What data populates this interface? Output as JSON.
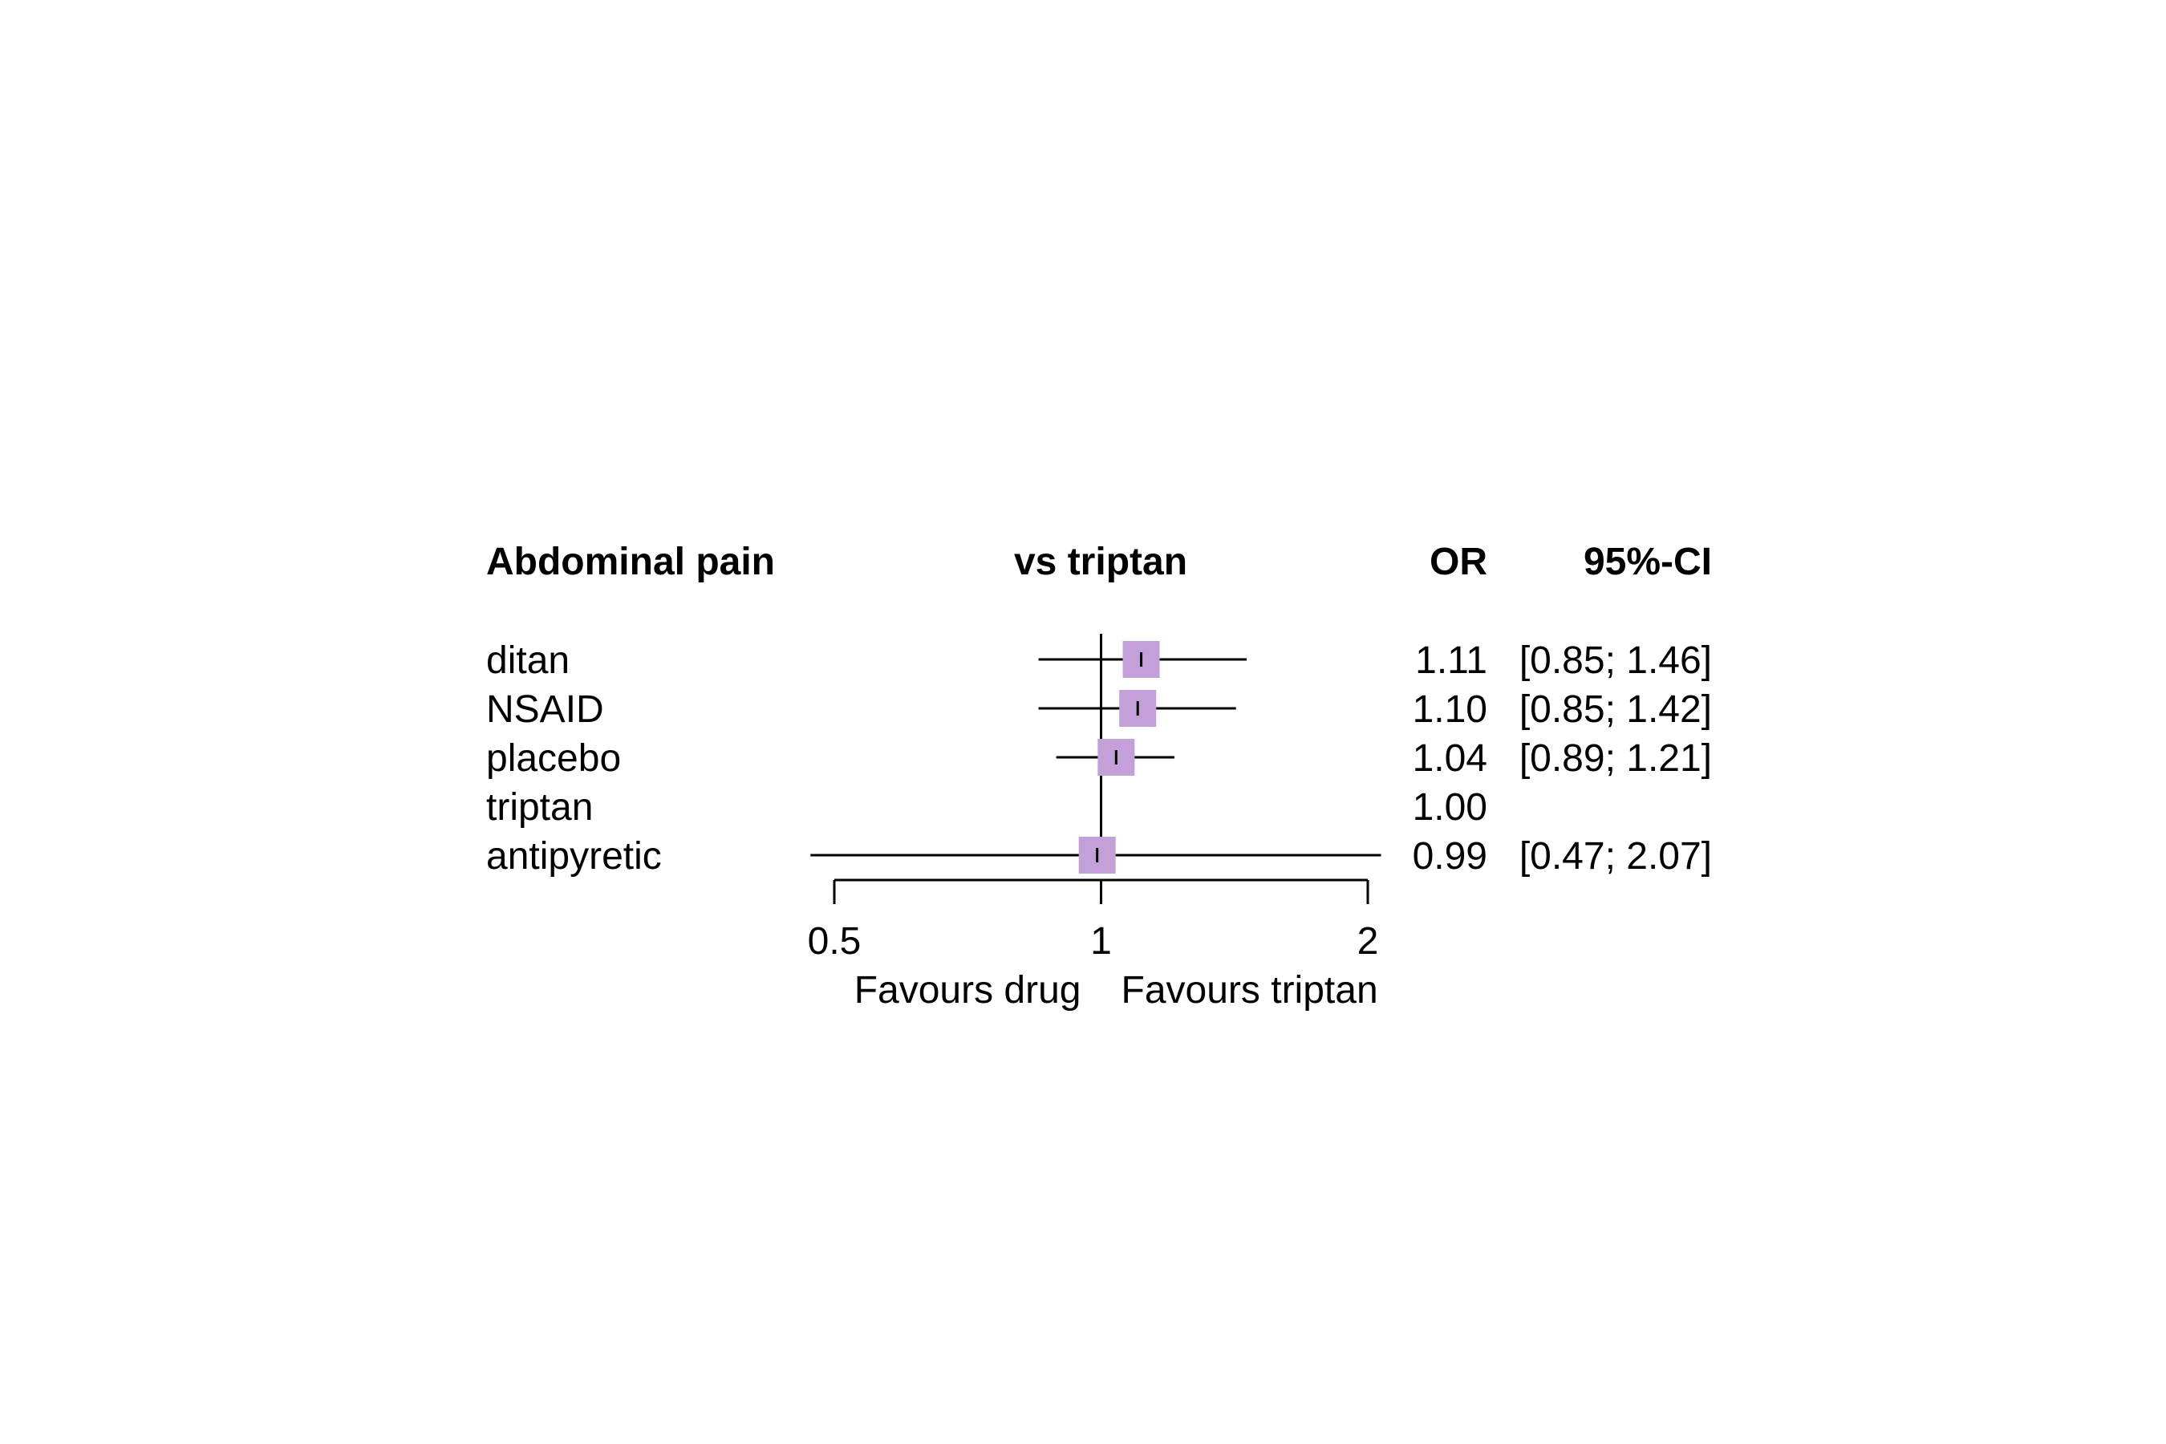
{
  "chart_data": {
    "type": "forest",
    "headers": {
      "outcome": "Abdominal pain",
      "comparison": "vs triptan",
      "estimate": "OR",
      "ci": "95%-CI"
    },
    "scale": "log",
    "xlim": [
      0.5,
      2
    ],
    "reference_value": 1,
    "ticks": [
      {
        "value": 0.5,
        "label": "0.5"
      },
      {
        "value": 1,
        "label": "1"
      },
      {
        "value": 2,
        "label": "2"
      }
    ],
    "favours_left": "Favours drug",
    "favours_right": "Favours triptan",
    "marker_color": "#c3a1d8",
    "rows": [
      {
        "label": "ditan",
        "or": 1.11,
        "lower": 0.85,
        "upper": 1.46,
        "or_text": "1.11",
        "ci_text": "[0.85; 1.46]"
      },
      {
        "label": "NSAID",
        "or": 1.1,
        "lower": 0.85,
        "upper": 1.42,
        "or_text": "1.10",
        "ci_text": "[0.85; 1.42]"
      },
      {
        "label": "placebo",
        "or": 1.04,
        "lower": 0.89,
        "upper": 1.21,
        "or_text": "1.04",
        "ci_text": "[0.89; 1.21]"
      },
      {
        "label": "triptan",
        "or": 1.0,
        "lower": null,
        "upper": null,
        "or_text": "1.00",
        "ci_text": ""
      },
      {
        "label": "antipyretic",
        "or": 0.99,
        "lower": 0.47,
        "upper": 2.07,
        "or_text": "0.99",
        "ci_text": "[0.47; 2.07]"
      }
    ]
  }
}
